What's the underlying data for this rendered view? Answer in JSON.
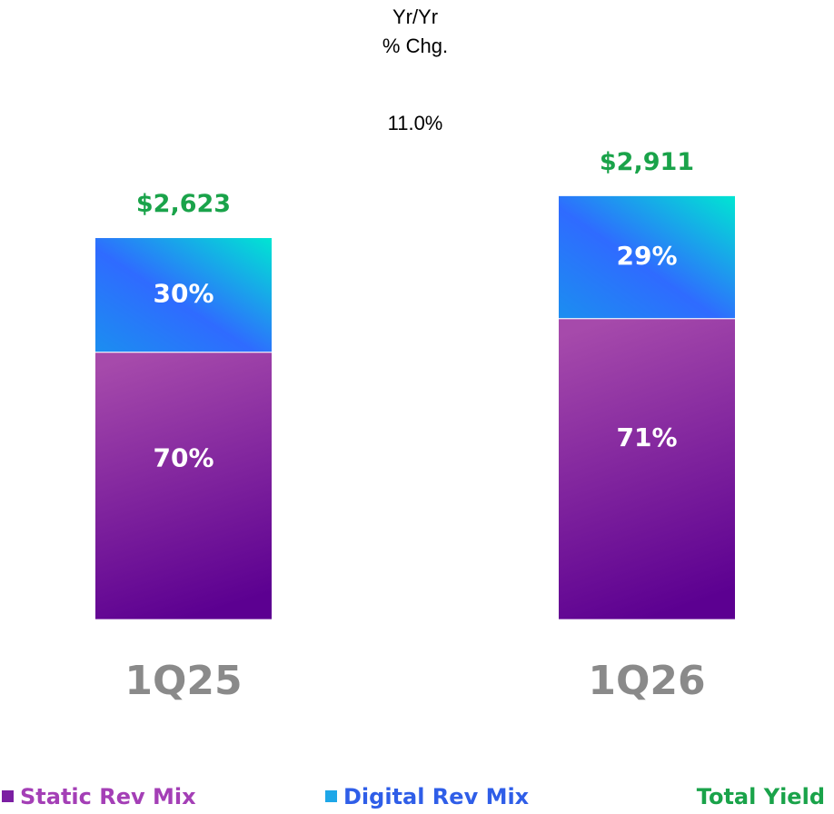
{
  "chart_data": {
    "type": "stacked_bar",
    "annotation": {
      "label": [
        "Yr/Yr",
        "% Chg."
      ],
      "value": 11.0,
      "value_label": "11.0%"
    },
    "categories": [
      "1Q25",
      "1Q26"
    ],
    "series": [
      {
        "name": "Static Rev Mix",
        "color": "#7b1fa2",
        "values": [
          70,
          71
        ],
        "value_labels": [
          "70%",
          "71%"
        ]
      },
      {
        "name": "Digital Rev Mix",
        "color": "#1ea7e8",
        "values": [
          30,
          29
        ],
        "value_labels": [
          "30%",
          "29%"
        ]
      }
    ],
    "totals": {
      "name": "Total Yield",
      "color": "#1aa34a",
      "values": [
        2623,
        2911
      ],
      "value_labels": [
        "$2,623",
        "$2,911"
      ]
    }
  }
}
